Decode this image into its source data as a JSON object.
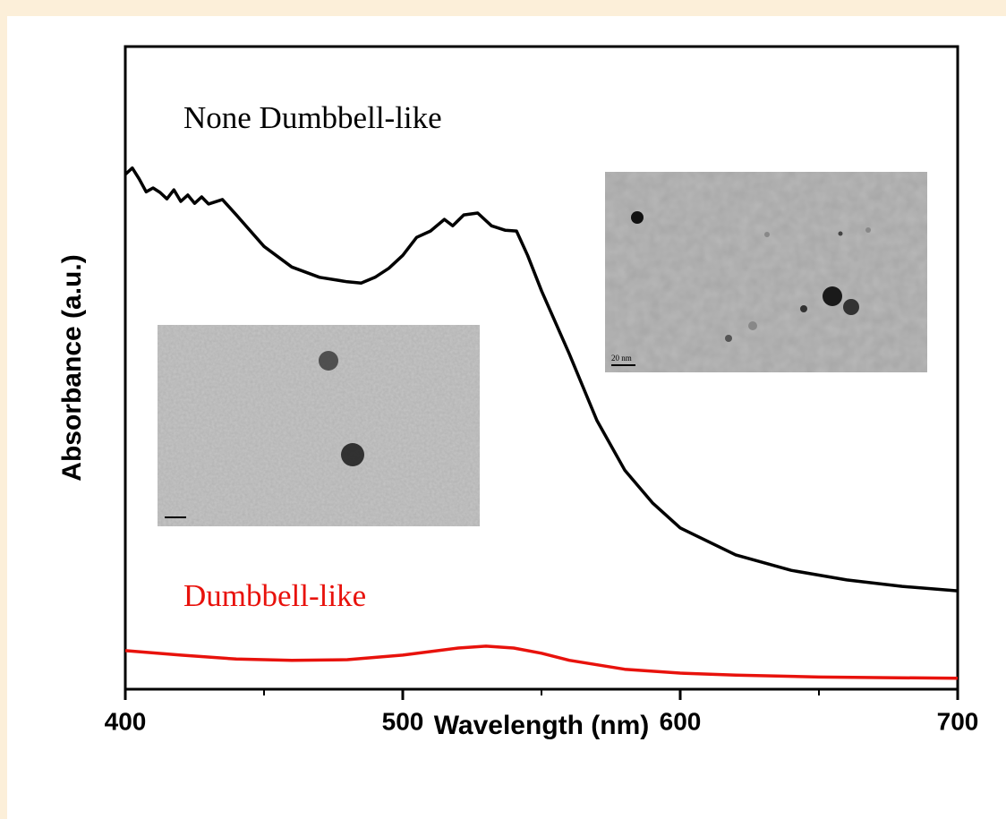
{
  "chart_data": {
    "type": "line",
    "xlabel": "Wavelength (nm)",
    "ylabel": "Absorbance (a.u.)",
    "xlim": [
      400,
      700
    ],
    "xticks": [
      400,
      500,
      600,
      700
    ],
    "xminorticks": [
      450,
      550,
      650
    ],
    "ylim": [
      0,
      1
    ],
    "annotations": [
      {
        "text": "None Dumbbell-like",
        "color": "#000000"
      },
      {
        "text": "Dumbbell-like",
        "color": "#e8120c"
      }
    ],
    "inset_scale_label": "20 nm",
    "series": [
      {
        "color": "#000000",
        "x": [
          400,
          402.5,
          405,
          407.5,
          410,
          412.5,
          415,
          417.5,
          420,
          422.5,
          425,
          427.5,
          430,
          435,
          440,
          450,
          460,
          470,
          480,
          485,
          490,
          495,
          500,
          505,
          510,
          515,
          518,
          522,
          527,
          532,
          537,
          541,
          545,
          550,
          560,
          570,
          580,
          590,
          600,
          620,
          640,
          660,
          680,
          700
        ],
        "values": [
          0.801,
          0.811,
          0.794,
          0.774,
          0.78,
          0.773,
          0.763,
          0.777,
          0.759,
          0.769,
          0.756,
          0.766,
          0.755,
          0.762,
          0.738,
          0.689,
          0.657,
          0.641,
          0.634,
          0.632,
          0.641,
          0.655,
          0.675,
          0.703,
          0.713,
          0.731,
          0.721,
          0.738,
          0.741,
          0.721,
          0.714,
          0.713,
          0.675,
          0.62,
          0.522,
          0.418,
          0.341,
          0.29,
          0.251,
          0.209,
          0.185,
          0.17,
          0.16,
          0.153
        ]
      },
      {
        "color": "#e8120c",
        "x": [
          400,
          420,
          440,
          460,
          480,
          500,
          520,
          530,
          540,
          550,
          560,
          580,
          600,
          620,
          650,
          700
        ],
        "values": [
          0.06,
          0.053,
          0.047,
          0.045,
          0.046,
          0.053,
          0.064,
          0.067,
          0.064,
          0.056,
          0.045,
          0.031,
          0.025,
          0.022,
          0.019,
          0.017
        ]
      }
    ]
  }
}
